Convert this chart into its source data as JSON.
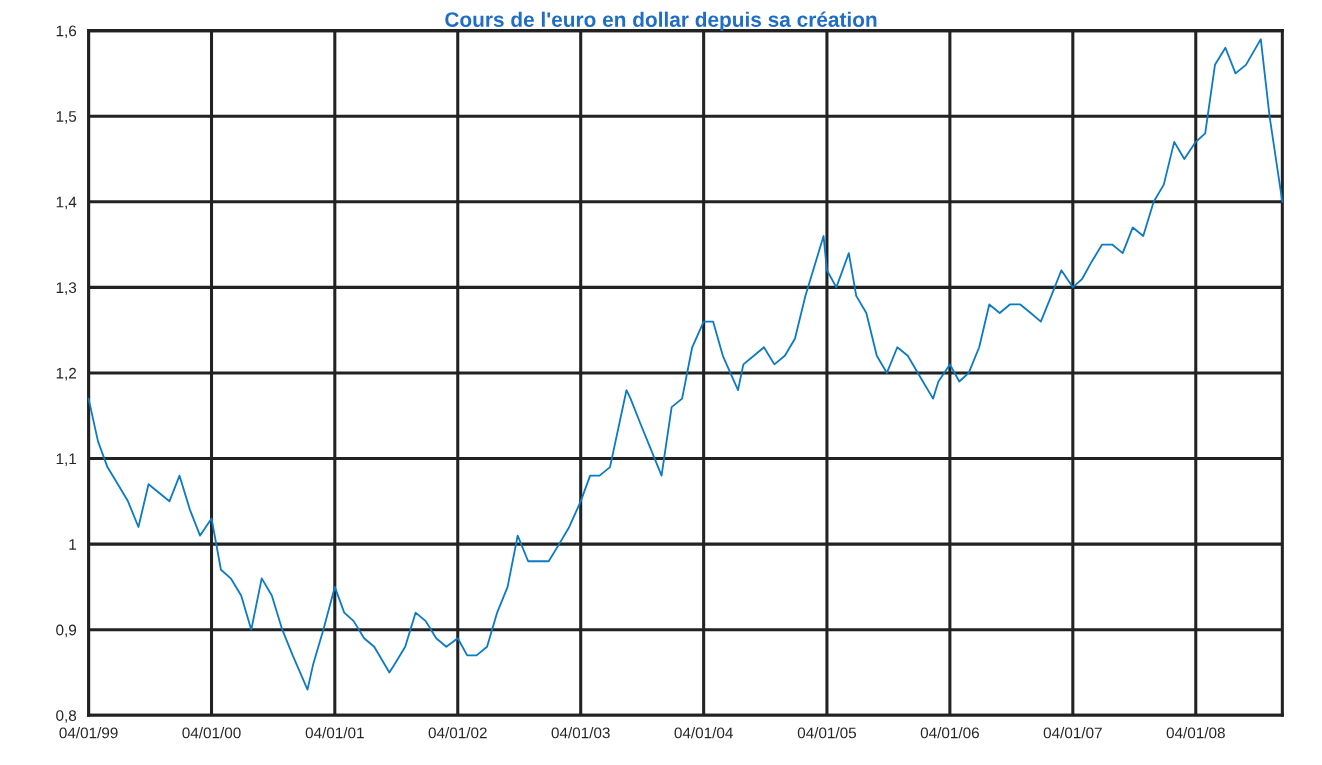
{
  "chart_data": {
    "type": "line",
    "title": "Cours de l'euro en dollar depuis sa création",
    "x": [
      "1999-01-04",
      "1999-02-01",
      "1999-03-01",
      "1999-04-01",
      "1999-05-01",
      "1999-06-01",
      "1999-07-01",
      "1999-08-01",
      "1999-09-01",
      "1999-10-01",
      "1999-11-01",
      "1999-12-01",
      "2000-01-04",
      "2000-02-01",
      "2000-03-01",
      "2000-04-01",
      "2000-05-01",
      "2000-06-01",
      "2000-07-01",
      "2000-08-01",
      "2000-09-01",
      "2000-10-15",
      "2000-11-01",
      "2000-12-01",
      "2001-01-04",
      "2001-02-01",
      "2001-03-01",
      "2001-04-01",
      "2001-05-01",
      "2001-06-15",
      "2001-07-01",
      "2001-08-01",
      "2001-09-01",
      "2001-10-01",
      "2001-11-01",
      "2001-12-01",
      "2002-01-04",
      "2002-02-01",
      "2002-03-01",
      "2002-04-01",
      "2002-05-01",
      "2002-06-01",
      "2002-07-01",
      "2002-08-01",
      "2002-09-01",
      "2002-10-01",
      "2002-11-01",
      "2002-12-01",
      "2003-01-04",
      "2003-02-01",
      "2003-03-01",
      "2003-04-01",
      "2003-05-20",
      "2003-06-01",
      "2003-07-01",
      "2003-08-01",
      "2003-09-01",
      "2003-10-01",
      "2003-11-01",
      "2003-12-01",
      "2004-01-04",
      "2004-02-01",
      "2004-03-01",
      "2004-04-15",
      "2004-05-01",
      "2004-06-01",
      "2004-07-01",
      "2004-08-01",
      "2004-09-01",
      "2004-10-01",
      "2004-11-01",
      "2004-12-25",
      "2005-01-04",
      "2005-02-01",
      "2005-03-10",
      "2005-04-01",
      "2005-05-01",
      "2005-06-01",
      "2005-07-01",
      "2005-08-01",
      "2005-09-01",
      "2005-10-01",
      "2005-11-15",
      "2005-12-01",
      "2006-01-04",
      "2006-02-01",
      "2006-03-01",
      "2006-04-01",
      "2006-05-01",
      "2006-06-01",
      "2006-07-01",
      "2006-08-01",
      "2006-09-01",
      "2006-10-01",
      "2006-11-01",
      "2006-12-01",
      "2007-01-04",
      "2007-02-01",
      "2007-03-01",
      "2007-04-01",
      "2007-05-01",
      "2007-06-01",
      "2007-07-01",
      "2007-08-01",
      "2007-09-01",
      "2007-10-01",
      "2007-11-01",
      "2007-12-01",
      "2008-01-04",
      "2008-02-01",
      "2008-03-01",
      "2008-04-01",
      "2008-05-01",
      "2008-06-01",
      "2008-07-15",
      "2008-08-10",
      "2008-09-17"
    ],
    "series": [
      {
        "color": "#0a7bc4",
        "values": [
          1.17,
          1.12,
          1.09,
          1.07,
          1.05,
          1.02,
          1.07,
          1.06,
          1.05,
          1.08,
          1.04,
          1.01,
          1.03,
          0.97,
          0.96,
          0.94,
          0.9,
          0.96,
          0.94,
          0.9,
          0.87,
          0.83,
          0.86,
          0.9,
          0.95,
          0.92,
          0.91,
          0.89,
          0.88,
          0.85,
          0.86,
          0.88,
          0.92,
          0.91,
          0.89,
          0.88,
          0.89,
          0.87,
          0.87,
          0.88,
          0.92,
          0.95,
          1.01,
          0.98,
          0.98,
          0.98,
          1.0,
          1.02,
          1.05,
          1.08,
          1.08,
          1.09,
          1.18,
          1.17,
          1.14,
          1.11,
          1.08,
          1.16,
          1.17,
          1.23,
          1.26,
          1.26,
          1.22,
          1.18,
          1.21,
          1.22,
          1.23,
          1.21,
          1.22,
          1.24,
          1.29,
          1.36,
          1.32,
          1.3,
          1.34,
          1.29,
          1.27,
          1.22,
          1.2,
          1.23,
          1.22,
          1.2,
          1.17,
          1.19,
          1.21,
          1.19,
          1.2,
          1.23,
          1.28,
          1.27,
          1.28,
          1.28,
          1.27,
          1.26,
          1.29,
          1.32,
          1.3,
          1.31,
          1.33,
          1.35,
          1.35,
          1.34,
          1.37,
          1.36,
          1.4,
          1.42,
          1.47,
          1.45,
          1.47,
          1.48,
          1.56,
          1.58,
          1.55,
          1.56,
          1.59,
          1.5,
          1.4
        ]
      }
    ],
    "xlim": [
      "1999-01-04",
      "2008-09-17"
    ],
    "xticks": [
      {
        "value": "1999-01-04",
        "label": "04/01/99"
      },
      {
        "value": "2000-01-04",
        "label": "04/01/00"
      },
      {
        "value": "2001-01-04",
        "label": "04/01/01"
      },
      {
        "value": "2002-01-04",
        "label": "04/01/02"
      },
      {
        "value": "2003-01-04",
        "label": "04/01/03"
      },
      {
        "value": "2004-01-04",
        "label": "04/01/04"
      },
      {
        "value": "2005-01-04",
        "label": "04/01/05"
      },
      {
        "value": "2006-01-04",
        "label": "04/01/06"
      },
      {
        "value": "2007-01-04",
        "label": "04/01/07"
      },
      {
        "value": "2008-01-04",
        "label": "04/01/08"
      }
    ],
    "ylim": [
      0.8,
      1.6
    ],
    "yticks": [
      {
        "value": 0.8,
        "label": "0,8"
      },
      {
        "value": 0.9,
        "label": "0,9"
      },
      {
        "value": 1.0,
        "label": "1"
      },
      {
        "value": 1.1,
        "label": "1,1"
      },
      {
        "value": 1.2,
        "label": "1,2"
      },
      {
        "value": 1.3,
        "label": "1,3"
      },
      {
        "value": 1.4,
        "label": "1,4"
      },
      {
        "value": 1.5,
        "label": "1,5"
      },
      {
        "value": 1.6,
        "label": "1,6"
      }
    ],
    "grid": true,
    "marker": "none",
    "line_style": "solid"
  }
}
